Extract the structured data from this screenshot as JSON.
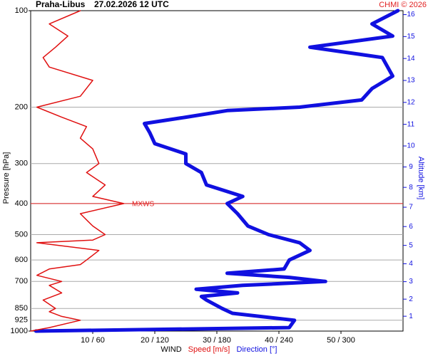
{
  "chart_data": {
    "type": "profile",
    "title": "Praha-Libus",
    "subtitle": "27.02.2026 12 UTC",
    "credit": "CHMI © 2026",
    "ylabel": "Pressure [hPa]",
    "y2label": "Altitude [km]",
    "xlabel": "WIND",
    "xlabel_speed": "Speed [m/s]",
    "xlabel_direction": "Direction [°]",
    "y_scale": "log",
    "ylim": [
      1000,
      100
    ],
    "yticks": [
      100,
      200,
      300,
      400,
      500,
      600,
      700,
      850,
      925,
      1000
    ],
    "y2_scale": "standard-atmosphere",
    "y2ticks": [
      1,
      2,
      3,
      4,
      5,
      6,
      7,
      8,
      9,
      10,
      11,
      12,
      13,
      14,
      15,
      16
    ],
    "xlim": [
      0,
      60
    ],
    "x2lim": [
      0,
      360
    ],
    "xticks": [
      {
        "value": 10,
        "label": "10 / 60"
      },
      {
        "value": 20,
        "label": "20 / 120"
      },
      {
        "value": 30,
        "label": "30 / 180"
      },
      {
        "value": 40,
        "label": "40 / 240"
      },
      {
        "value": 50,
        "label": "50 / 300"
      }
    ],
    "grid": true,
    "max_wind": {
      "label": "MXWS",
      "pressure": 400,
      "color": "#e02020"
    },
    "series": [
      {
        "name": "Speed [m/s]",
        "color": "#e01010",
        "axis": "x",
        "pressure": [
          1000,
          975,
          925,
          900,
          870,
          850,
          800,
          760,
          720,
          700,
          670,
          640,
          620,
          600,
          560,
          530,
          520,
          500,
          470,
          430,
          400,
          380,
          350,
          320,
          300,
          270,
          250,
          230,
          215,
          200,
          185,
          165,
          150,
          140,
          130,
          120,
          110,
          100
        ],
        "values": [
          0,
          3,
          8,
          5,
          3,
          4,
          2,
          5,
          3,
          5,
          1,
          3,
          8,
          9,
          11,
          1,
          10,
          12,
          10,
          8,
          15,
          10,
          12,
          9,
          11,
          10,
          8,
          9,
          5,
          1,
          8,
          10,
          3,
          2,
          4,
          6,
          3,
          8
        ]
      },
      {
        "name": "Direction [°]",
        "color": "#1010e0",
        "axis": "x2",
        "pressure": [
          1000,
          975,
          925,
          880,
          850,
          800,
          780,
          760,
          740,
          720,
          700,
          680,
          660,
          640,
          600,
          560,
          530,
          500,
          470,
          430,
          400,
          380,
          350,
          320,
          300,
          280,
          260,
          240,
          225,
          215,
          205,
          200,
          190,
          175,
          160,
          140,
          130,
          120,
          110,
          100
        ],
        "values": [
          5,
          250,
          255,
          195,
          185,
          170,
          165,
          200,
          160,
          205,
          285,
          250,
          190,
          245,
          250,
          270,
          260,
          230,
          210,
          200,
          190,
          205,
          170,
          165,
          150,
          150,
          120,
          115,
          110,
          150,
          190,
          260,
          320,
          330,
          350,
          340,
          270,
          350,
          330,
          355
        ]
      }
    ]
  }
}
